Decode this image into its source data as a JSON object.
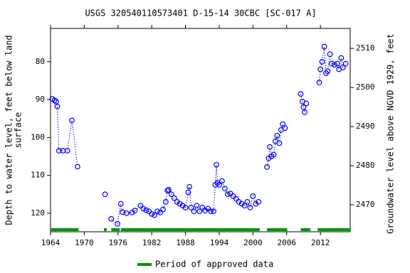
{
  "chart_data": {
    "type": "line",
    "title": "USGS 320540110573401 D-15-14 30CBC [SC-017 A]",
    "ylabel_lines": [
      "Depth to water level, feet below land",
      "surface"
    ],
    "y2label": "Groundwater level above NGVD 1929, feet",
    "xlim": [
      1964,
      2017.3
    ],
    "xticks": [
      1964,
      1970,
      1976,
      1982,
      1988,
      1994,
      2000,
      2006,
      2012
    ],
    "ylim": [
      124.9,
      71.2
    ],
    "yticks": [
      80,
      90,
      100,
      110,
      120
    ],
    "y_inverted": true,
    "y2lim": [
      2463.1,
      2515.1
    ],
    "y2ticks": [
      2470,
      2480,
      2490,
      2500,
      2510
    ],
    "series": [
      {
        "name": "Depth to water level",
        "color": "#0000ff",
        "x": [
          1964.3,
          1964.7,
          1965.0,
          1965.2,
          1965.5,
          1966.2,
          1967.0,
          1967.8,
          1968.8,
          null,
          1973.7,
          null,
          1974.8,
          1975.9,
          1976.5,
          1976.8,
          1977.5,
          1978.5,
          1979.0,
          1980.0,
          1980.5,
          1981.0,
          1981.5,
          1982.0,
          1982.5,
          1983.0,
          1983.5,
          1984.0,
          1984.5,
          1984.8,
          1985.0,
          1985.5,
          1986.0,
          1986.5,
          1987.0,
          1987.5,
          1988.0,
          1988.5,
          1988.7,
          1989.0,
          1989.5,
          1990.0,
          1990.5,
          1991.0,
          1991.5,
          1992.0,
          1992.5,
          1993.0,
          1993.3,
          1993.5,
          1993.7,
          1994.0,
          1994.5,
          1995.0,
          1995.5,
          1996.0,
          1996.5,
          1997.0,
          1997.5,
          1998.0,
          1998.5,
          1999.0,
          1999.5,
          2000.0,
          2000.5,
          2001.0,
          null,
          2002.5,
          2002.8,
          2003.0,
          2003.3,
          2003.7,
          2004.0,
          2004.3,
          2004.7,
          2005.0,
          2005.3,
          2005.7,
          null,
          2008.5,
          2008.8,
          2009.0,
          2009.2,
          2009.5,
          null,
          2011.8,
          2012.0,
          2012.3,
          2012.7,
          2013.0,
          2013.3,
          2013.7,
          2014.0,
          2014.5,
          2015.0,
          2015.3,
          2015.7,
          2016.0,
          2016.5
        ],
        "values": [
          89.8,
          90.2,
          90.5,
          91.8,
          103.5,
          103.5,
          103.5,
          95.5,
          107.7,
          null,
          115,
          null,
          121.5,
          122.8,
          117.5,
          119.7,
          120,
          119.8,
          119.3,
          118,
          118.8,
          119.2,
          119.5,
          120.2,
          120.5,
          119.5,
          119.8,
          119,
          117,
          114,
          113.8,
          115,
          116,
          117,
          117.5,
          118,
          118.5,
          114.5,
          113,
          118.5,
          119.5,
          118,
          119.5,
          118.5,
          119.3,
          118.8,
          119.5,
          119.5,
          112.5,
          107.2,
          112,
          112.5,
          111.5,
          113.5,
          115,
          114.8,
          115.5,
          116.2,
          117,
          117.5,
          118,
          117,
          118.5,
          115.5,
          117.5,
          117,
          null,
          107.8,
          105.5,
          102.5,
          105,
          104.5,
          101,
          99.5,
          101.5,
          98,
          96.5,
          97.5,
          null,
          88.5,
          90.5,
          92,
          93.3,
          91,
          null,
          85.5,
          82,
          80,
          76,
          83,
          82.5,
          78,
          80.5,
          80.8,
          80.5,
          82,
          79,
          81.5,
          80.5
        ]
      }
    ],
    "approved_periods": [
      [
        1964,
        1969
      ],
      [
        1973.5,
        1974
      ],
      [
        1974.8,
        1976.3
      ],
      [
        1976.5,
        2001.2
      ],
      [
        2002.5,
        2006.1
      ],
      [
        2008.5,
        2010.2
      ],
      [
        2011.5,
        2017.3
      ]
    ],
    "approved_color": "#009900",
    "legend": "Period of approved data"
  }
}
